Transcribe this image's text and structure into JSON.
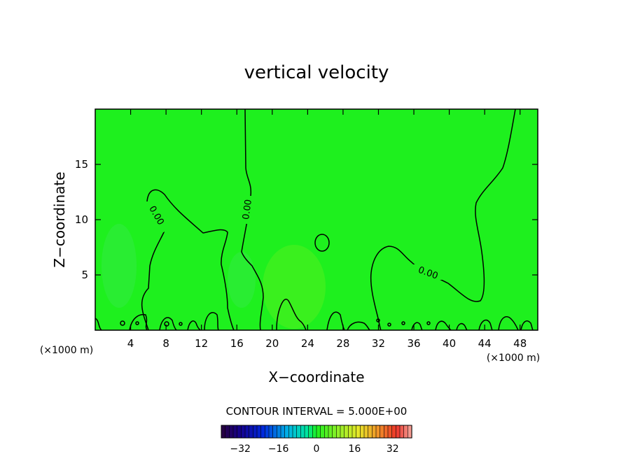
{
  "chart_data": {
    "type": "heatmap",
    "title": "vertical velocity",
    "xlabel": "X−coordinate",
    "ylabel": "Z−coordinate",
    "x_unit": "(×1000 m)",
    "y_unit": "(×1000 m)",
    "xlim": [
      0,
      50
    ],
    "ylim": [
      0,
      20
    ],
    "x_ticks": [
      4,
      8,
      12,
      16,
      20,
      24,
      28,
      32,
      36,
      40,
      44,
      48
    ],
    "y_ticks": [
      5,
      10,
      15
    ],
    "contour_interval_text": "CONTOUR INTERVAL = 5.000E+00",
    "contour_labels": [
      "0.00",
      "0.00",
      "0.00"
    ],
    "colorbar": {
      "range": [
        -40,
        40
      ],
      "ticks": [
        -32,
        -16,
        0,
        16,
        32
      ],
      "tick_labels": [
        "−32",
        "−16",
        "0",
        "16",
        "32"
      ]
    },
    "colors": {
      "field": "#1ef01e",
      "contour": "#000000"
    }
  }
}
